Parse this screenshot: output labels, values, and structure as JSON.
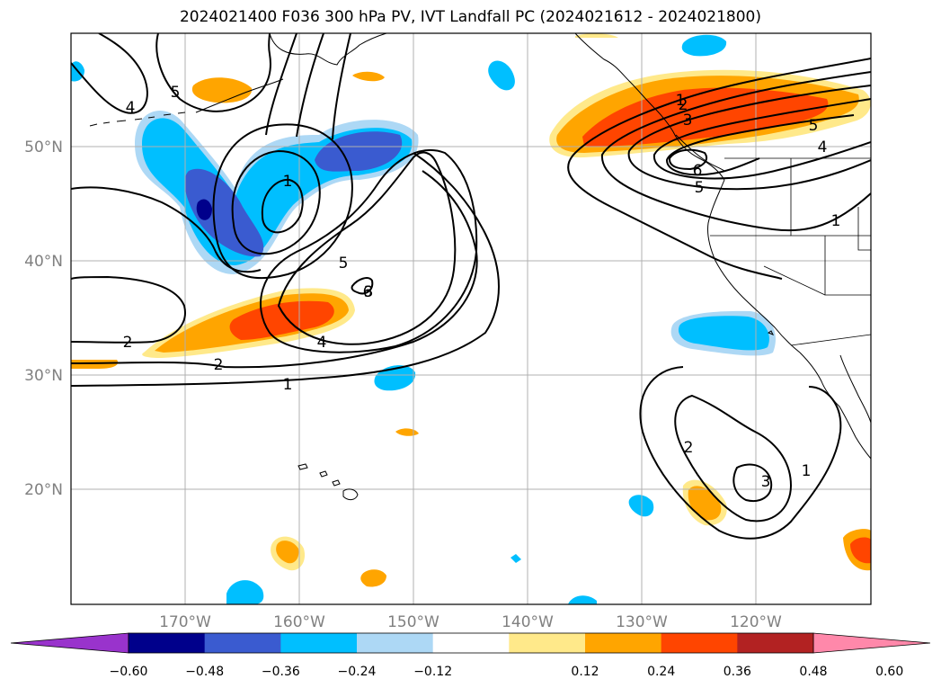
{
  "figure": {
    "title": "2024021400 F036 300 hPa PV, IVT Landfall PC (2024021612 - 2024021800)"
  },
  "map": {
    "lat_ticks": [
      "50°N",
      "40°N",
      "30°N",
      "20°N"
    ],
    "lon_ticks": [
      "170°W",
      "160°W",
      "150°W",
      "140°W",
      "130°W",
      "120°W"
    ],
    "contour_labels": [
      "1",
      "2",
      "3",
      "4",
      "5",
      "6",
      "1",
      "2",
      "4",
      "5",
      "1",
      "2",
      "3",
      "1",
      "3",
      "4",
      "5",
      "6",
      "5",
      "1",
      "2"
    ],
    "gridlines": true
  },
  "colorbar": {
    "tick_labels": [
      "−0.60",
      "−0.48",
      "−0.36",
      "−0.24",
      "−0.12",
      "0.12",
      "0.24",
      "0.36",
      "0.48",
      "0.60"
    ],
    "colors": [
      "#9933cc",
      "#00008b",
      "#3a5bd0",
      "#00bfff",
      "#add8f5",
      "#ffffff",
      "#ffe98a",
      "#ffa500",
      "#ff4500",
      "#b22222",
      "#ff88aa"
    ],
    "extend": "both"
  }
}
